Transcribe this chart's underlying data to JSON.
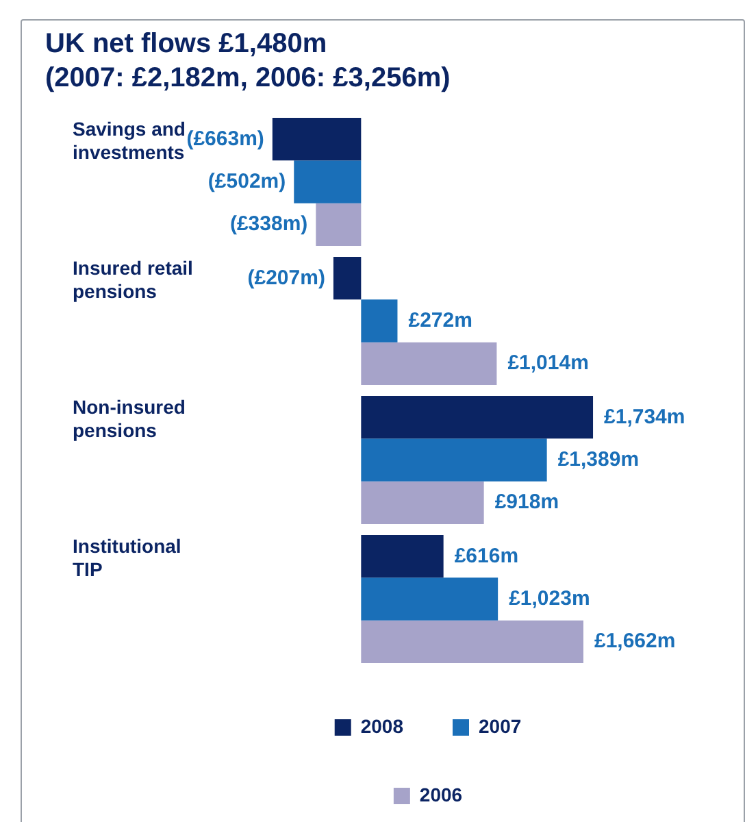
{
  "chart_data": {
    "type": "bar",
    "orientation": "horizontal",
    "title": "UK net flows £1,480m\n(2007: £2,182m, 2006: £3,256m)",
    "categories": [
      "Savings and investments",
      "Insured retail pensions",
      "Non-insured pensions",
      "Institutional TIP"
    ],
    "series": [
      {
        "name": "2008",
        "color": "#0b2463",
        "values": [
          -663,
          -207,
          1734,
          616
        ],
        "value_labels": [
          "(£663m)",
          "(£207m)",
          "£1,734m",
          "£616m"
        ]
      },
      {
        "name": "2007",
        "color": "#1a6fb8",
        "values": [
          -502,
          272,
          1389,
          1023
        ],
        "value_labels": [
          "(£502m)",
          "£272m",
          "£1,389m",
          "£1,023m"
        ]
      },
      {
        "name": "2006",
        "color": "#a6a3c9",
        "values": [
          -338,
          1014,
          918,
          1662
        ],
        "value_labels": [
          "(£338m)",
          "£1,014m",
          "£918m",
          "£1,662m"
        ]
      }
    ],
    "legend": "bottom"
  }
}
